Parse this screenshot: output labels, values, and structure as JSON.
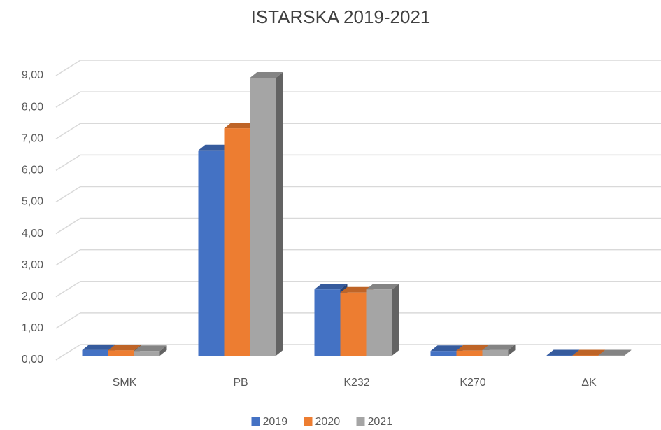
{
  "chart_data": {
    "type": "bar3d",
    "title": "ISTARSKA 2019-2021",
    "categories": [
      "SMK",
      "PB",
      "K232",
      "K270",
      "ΔK"
    ],
    "series": [
      {
        "name": "2019",
        "color": "#4472c4",
        "values": [
          0.18,
          6.5,
          2.1,
          0.15,
          0.01
        ]
      },
      {
        "name": "2020",
        "color": "#ed7d31",
        "values": [
          0.17,
          7.2,
          2.0,
          0.16,
          0.01
        ]
      },
      {
        "name": "2021",
        "color": "#a5a5a5",
        "values": [
          0.15,
          8.8,
          2.1,
          0.18,
          0.01
        ]
      }
    ],
    "ylim": [
      0,
      9
    ],
    "yticks": [
      {
        "value": 0,
        "label": "0,00"
      },
      {
        "value": 1,
        "label": "1,00"
      },
      {
        "value": 2,
        "label": "2,00"
      },
      {
        "value": 3,
        "label": "3,00"
      },
      {
        "value": 4,
        "label": "4,00"
      },
      {
        "value": 5,
        "label": "5,00"
      },
      {
        "value": 6,
        "label": "6,00"
      },
      {
        "value": 7,
        "label": "7,00"
      },
      {
        "value": 8,
        "label": "8,00"
      },
      {
        "value": 9,
        "label": "9,00"
      }
    ],
    "grid": true,
    "legend": "bottom"
  }
}
